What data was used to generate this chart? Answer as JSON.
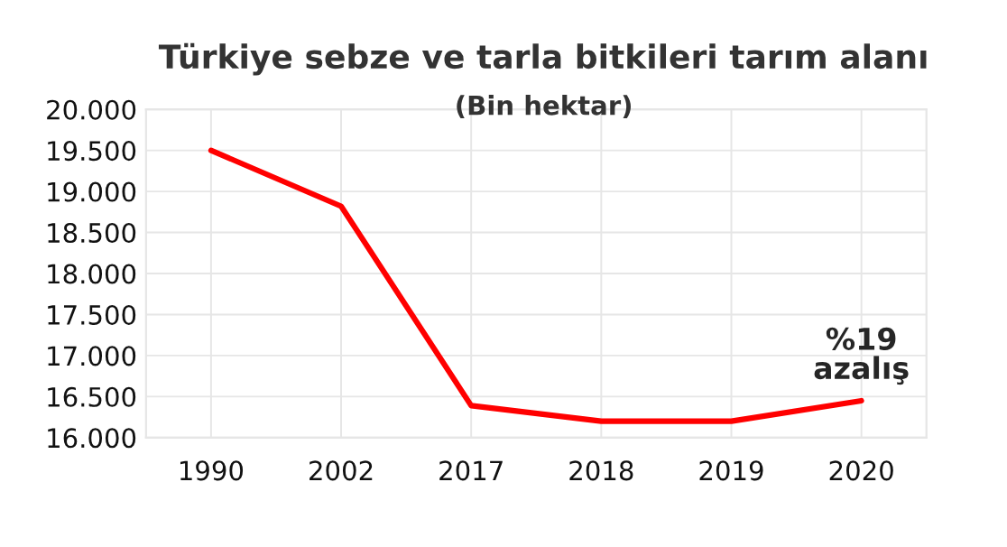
{
  "chart_data": {
    "type": "line",
    "title": "Türkiye sebze ve tarla bitkileri tarım alanı",
    "subtitle": "(Bin hektar)",
    "categories": [
      "1990",
      "2002",
      "2017",
      "2018",
      "2019",
      "2020"
    ],
    "series": [
      {
        "color": "#ff0000",
        "values": [
          19500,
          18820,
          16390,
          16200,
          16200,
          16450
        ]
      }
    ],
    "ylim": [
      16000,
      20000
    ],
    "yticks": [
      {
        "value": 16000,
        "label": "16.000"
      },
      {
        "value": 16500,
        "label": "16.500"
      },
      {
        "value": 17000,
        "label": "17.000"
      },
      {
        "value": 17500,
        "label": "17.500"
      },
      {
        "value": 18000,
        "label": "18.000"
      },
      {
        "value": 18500,
        "label": "18.500"
      },
      {
        "value": 19000,
        "label": "19.000"
      },
      {
        "value": 19500,
        "label": "19.500"
      },
      {
        "value": 20000,
        "label": "20.000"
      }
    ],
    "grid": true,
    "marker": "none",
    "line_style": "solid",
    "annotations": [
      "%19\nazalış"
    ]
  }
}
